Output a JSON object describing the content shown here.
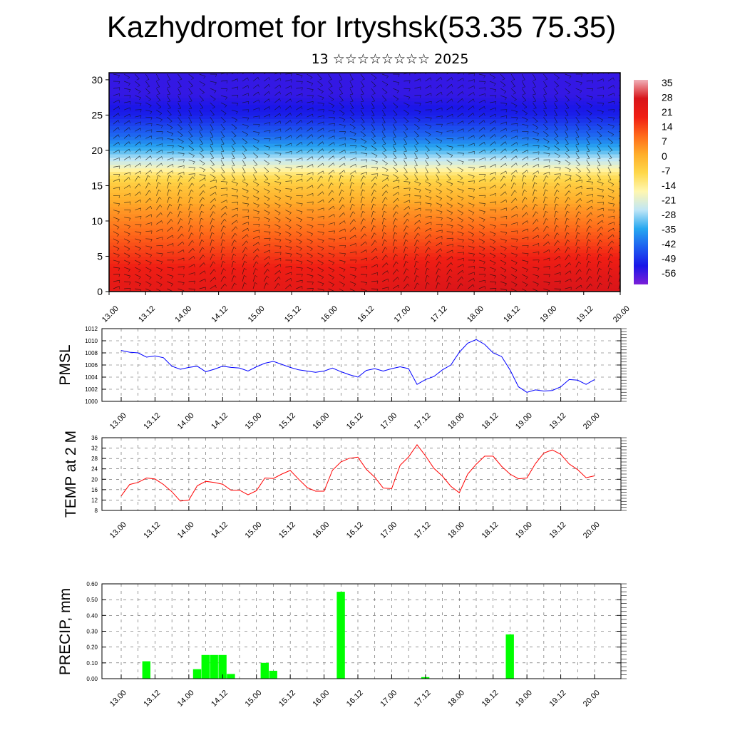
{
  "title": "Kazhydromet for Irtyshsk(53.35 75.35)",
  "subtitle": "13 ☆☆☆☆☆☆☆☆ 2025",
  "time_labels": [
    "13.00",
    "13.12",
    "14.00",
    "14.12",
    "15.00",
    "15.12",
    "16.00",
    "16.12",
    "17.00",
    "17.12",
    "18.00",
    "18.12",
    "19.00",
    "19.12",
    "20.00"
  ],
  "chart_data": [
    {
      "type": "heatmap",
      "title": "",
      "xlabel": "",
      "ylabel": "",
      "x_categories": [
        "13.00",
        "13.12",
        "14.00",
        "14.12",
        "15.00",
        "15.12",
        "16.00",
        "16.12",
        "17.00",
        "17.12",
        "18.00",
        "18.12",
        "19.00",
        "19.12",
        "20.00"
      ],
      "yticks": [
        0,
        5,
        10,
        15,
        20,
        25,
        30
      ],
      "ylim": [
        0,
        31
      ],
      "colorbar_labels": [
        "35",
        "28",
        "21",
        "14",
        "7",
        "0",
        "-7",
        "-14",
        "-21",
        "-28",
        "-35",
        "-42",
        "-49",
        "-56"
      ],
      "colorbar_range": [
        -63,
        42
      ],
      "color_stops": [
        "#7c1fd8",
        "#1a16e8",
        "#1d5ef0",
        "#27a8f0",
        "#bfe6f6",
        "#fff7b0",
        "#ffd84a",
        "#ffae2a",
        "#ff6a1a",
        "#f01e14",
        "#d8141a",
        "#f0b0b8"
      ],
      "level_temps": [
        {
          "level": 0,
          "temp": 28
        },
        {
          "level": 3,
          "temp": 24
        },
        {
          "level": 6,
          "temp": 18
        },
        {
          "level": 9,
          "temp": 12
        },
        {
          "level": 12,
          "temp": 6
        },
        {
          "level": 15,
          "temp": -2
        },
        {
          "level": 16.5,
          "temp": -8
        },
        {
          "level": 18,
          "temp": -20
        },
        {
          "level": 20,
          "temp": -32
        },
        {
          "level": 22,
          "temp": -42
        },
        {
          "level": 25,
          "temp": -52
        },
        {
          "level": 28,
          "temp": -56
        },
        {
          "level": 31,
          "temp": -56
        }
      ],
      "overlay": "wind barbs"
    },
    {
      "type": "line",
      "ylabel": "PMSL",
      "ylim": [
        1000,
        1012
      ],
      "yticks": [
        1000,
        1002,
        1004,
        1006,
        1008,
        1010,
        1012
      ],
      "color": "#0000ff",
      "x_categories": [
        "13.00",
        "13.12",
        "14.00",
        "14.12",
        "15.00",
        "15.12",
        "16.00",
        "16.12",
        "17.00",
        "17.12",
        "18.00",
        "18.12",
        "19.00",
        "19.12",
        "20.00"
      ],
      "x_hours": [
        0,
        3,
        6,
        9,
        12,
        15,
        18,
        21,
        24,
        27,
        30,
        33,
        36,
        39,
        42,
        45,
        48,
        51,
        54,
        57,
        60,
        63,
        66,
        69,
        72,
        75,
        78,
        81,
        84,
        87,
        90,
        93,
        96,
        99,
        102,
        105,
        108,
        111,
        114,
        117,
        120,
        123,
        126,
        129,
        132,
        135,
        138,
        141,
        144,
        147,
        150,
        153,
        156,
        159,
        162,
        165,
        168
      ],
      "values": [
        1008.4,
        1008.1,
        1008.0,
        1007.3,
        1007.5,
        1007.2,
        1005.8,
        1005.3,
        1005.6,
        1005.8,
        1004.9,
        1005.3,
        1005.8,
        1005.6,
        1005.5,
        1005.0,
        1005.7,
        1006.3,
        1006.6,
        1006.1,
        1005.6,
        1005.2,
        1005.0,
        1004.8,
        1005.0,
        1005.5,
        1004.9,
        1004.4,
        1004.0,
        1005.1,
        1005.4,
        1005.0,
        1005.4,
        1005.7,
        1005.4,
        1002.8,
        1003.6,
        1004.1,
        1005.2,
        1006.0,
        1008.1,
        1009.6,
        1010.2,
        1009.4,
        1008.0,
        1007.4,
        1005.2,
        1002.4,
        1001.5,
        1001.9,
        1001.7,
        1001.8,
        1002.4,
        1003.6,
        1003.5,
        1002.8,
        1003.6
      ]
    },
    {
      "type": "line",
      "ylabel": "TEMP at 2 M",
      "ylim": [
        8,
        36
      ],
      "yticks": [
        8,
        12,
        16,
        20,
        24,
        28,
        32,
        36
      ],
      "color": "#ff0000",
      "x_categories": [
        "13.00",
        "13.12",
        "14.00",
        "14.12",
        "15.00",
        "15.12",
        "16.00",
        "16.12",
        "17.00",
        "17.12",
        "18.00",
        "18.12",
        "19.00",
        "19.12",
        "20.00"
      ],
      "x_hours": [
        0,
        3,
        6,
        9,
        12,
        15,
        18,
        21,
        24,
        27,
        30,
        33,
        36,
        39,
        42,
        45,
        48,
        51,
        54,
        57,
        60,
        63,
        66,
        69,
        72,
        75,
        78,
        81,
        84,
        87,
        90,
        93,
        96,
        99,
        102,
        105,
        108,
        111,
        114,
        117,
        120,
        123,
        126,
        129,
        132,
        135,
        138,
        141,
        144,
        147,
        150,
        153,
        156,
        159,
        162,
        165,
        168
      ],
      "values": [
        13.6,
        18.0,
        18.8,
        20.5,
        20.1,
        18.0,
        15.2,
        11.6,
        12.0,
        17.5,
        19.2,
        18.8,
        18.1,
        15.8,
        15.8,
        14.0,
        15.6,
        20.5,
        20.3,
        22.0,
        23.4,
        20.0,
        16.8,
        15.4,
        15.4,
        23.5,
        26.7,
        28.1,
        28.5,
        23.8,
        20.8,
        16.6,
        16.4,
        25.4,
        28.6,
        33.3,
        29.0,
        24.2,
        21.2,
        17.3,
        14.8,
        22.0,
        25.8,
        28.9,
        28.9,
        25.0,
        22.0,
        20.2,
        20.5,
        26.0,
        30.1,
        31.3,
        29.6,
        25.9,
        23.7,
        20.6,
        21.3
      ]
    },
    {
      "type": "bar",
      "ylabel": "PRECIP, mm",
      "ylim": [
        0,
        0.6
      ],
      "yticks": [
        "0.00",
        "0.10",
        "0.20",
        "0.30",
        "0.40",
        "0.50",
        "0.60"
      ],
      "color": "#00ff00",
      "x_categories": [
        "13.00",
        "13.12",
        "14.00",
        "14.12",
        "15.00",
        "15.12",
        "16.00",
        "16.12",
        "17.00",
        "17.12",
        "18.00",
        "18.12",
        "19.00",
        "19.12",
        "20.00"
      ],
      "bars": [
        {
          "hour": 9,
          "value": 0.11
        },
        {
          "hour": 27,
          "value": 0.06
        },
        {
          "hour": 30,
          "value": 0.15
        },
        {
          "hour": 33,
          "value": 0.15
        },
        {
          "hour": 36,
          "value": 0.15
        },
        {
          "hour": 39,
          "value": 0.03
        },
        {
          "hour": 51,
          "value": 0.1
        },
        {
          "hour": 54,
          "value": 0.05
        },
        {
          "hour": 78,
          "value": 0.55
        },
        {
          "hour": 108,
          "value": 0.01
        },
        {
          "hour": 138,
          "value": 0.28
        }
      ]
    }
  ]
}
